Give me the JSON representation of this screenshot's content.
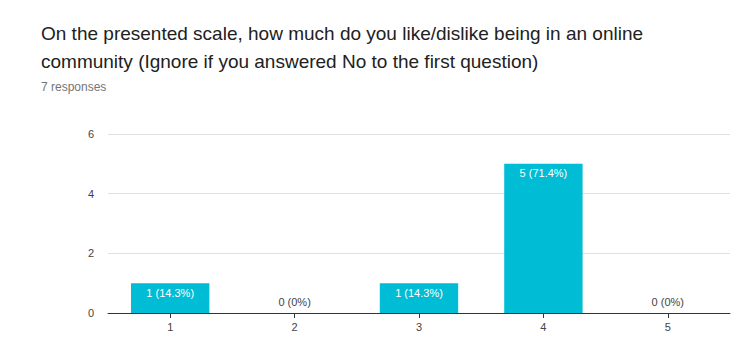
{
  "chart_data": {
    "type": "bar",
    "title": "On the presented scale, how much do you like/dislike being in an online community (Ignore if you answered No to the first question)",
    "subtitle": "7 responses",
    "categories": [
      "1",
      "2",
      "3",
      "4",
      "5"
    ],
    "values": [
      1,
      0,
      1,
      5,
      0
    ],
    "value_labels": [
      "1 (14.3%)",
      "0 (0%)",
      "1 (14.3%)",
      "5 (71.4%)",
      "0 (0%)"
    ],
    "data_labels": true,
    "color": "#00bcd4",
    "ylim": [
      0,
      6
    ],
    "yticks": [
      0,
      2,
      4,
      6
    ],
    "grid": true
  }
}
